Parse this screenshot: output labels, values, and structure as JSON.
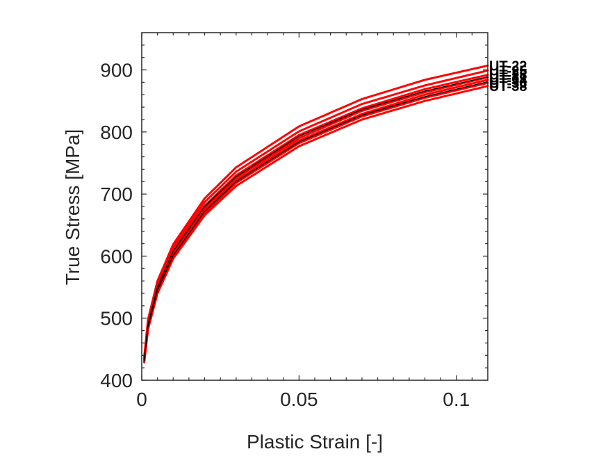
{
  "chart_data": {
    "type": "line",
    "xlabel": "Plastic Strain [-]",
    "ylabel": "True Stress [MPa]",
    "xlim": [
      0,
      0.11
    ],
    "ylim": [
      400,
      960
    ],
    "xticks": [
      0,
      0.05,
      0.1
    ],
    "xtick_labels": [
      "0",
      "0.05",
      "0.1"
    ],
    "yticks": [
      400,
      500,
      600,
      700,
      800,
      900
    ],
    "ytick_labels": [
      "400",
      "500",
      "600",
      "700",
      "800",
      "900"
    ],
    "grid": false,
    "legend": "none",
    "end_labels": [
      "UT-22",
      "UT-25",
      "UT-28",
      "UT-31",
      "UT-34",
      "UT-36",
      "UT-38"
    ],
    "series": [
      {
        "color": "#ff0000",
        "x": [
          0.0008,
          0.002,
          0.005,
          0.01,
          0.02,
          0.03,
          0.05,
          0.07,
          0.09,
          0.11
        ],
        "y": [
          438,
          498,
          560,
          619,
          693,
          743,
          809,
          853,
          884,
          907
        ]
      },
      {
        "color": "#ff0000",
        "x": [
          0.0008,
          0.002,
          0.005,
          0.01,
          0.02,
          0.03,
          0.05,
          0.07,
          0.09,
          0.11
        ],
        "y": [
          436,
          494,
          555,
          614,
          687,
          736,
          801,
          845,
          875,
          899
        ]
      },
      {
        "color": "#ff0000",
        "x": [
          0.0008,
          0.002,
          0.005,
          0.01,
          0.02,
          0.03,
          0.05,
          0.07,
          0.09,
          0.11
        ],
        "y": [
          434,
          491,
          551,
          609,
          681,
          730,
          795,
          838,
          869,
          892
        ]
      },
      {
        "color": "#ff0000",
        "x": [
          0.0008,
          0.002,
          0.005,
          0.01,
          0.02,
          0.03,
          0.05,
          0.07,
          0.09,
          0.11
        ],
        "y": [
          433,
          489,
          548,
          606,
          677,
          726,
          790,
          834,
          864,
          888
        ]
      },
      {
        "color": "#ff0000",
        "x": [
          0.0008,
          0.002,
          0.005,
          0.01,
          0.02,
          0.03,
          0.05,
          0.07,
          0.09,
          0.11
        ],
        "y": [
          432,
          487,
          546,
          603,
          674,
          722,
          786,
          829,
          860,
          884
        ]
      },
      {
        "color": "#ff0000",
        "x": [
          0.0008,
          0.002,
          0.005,
          0.01,
          0.02,
          0.03,
          0.05,
          0.07,
          0.09,
          0.11
        ],
        "y": [
          430,
          485,
          543,
          600,
          670,
          718,
          782,
          825,
          855,
          879
        ]
      },
      {
        "color": "#ff0000",
        "x": [
          0.0008,
          0.002,
          0.005,
          0.01,
          0.02,
          0.03,
          0.05,
          0.07,
          0.09,
          0.11
        ],
        "y": [
          429,
          482,
          540,
          596,
          666,
          713,
          777,
          820,
          850,
          874
        ]
      },
      {
        "color": "#000000",
        "x": [
          0.0008,
          0.002,
          0.005,
          0.01,
          0.02,
          0.03,
          0.05,
          0.07,
          0.09,
          0.11
        ],
        "y": [
          433,
          490,
          550,
          608,
          680,
          728,
          793,
          836,
          866,
          889
        ]
      },
      {
        "color": "#000000",
        "x": [
          0.0008,
          0.002,
          0.005,
          0.01,
          0.02,
          0.03,
          0.05,
          0.07,
          0.09,
          0.11
        ],
        "y": [
          431,
          486,
          545,
          601,
          672,
          720,
          784,
          827,
          857,
          881
        ]
      }
    ]
  }
}
